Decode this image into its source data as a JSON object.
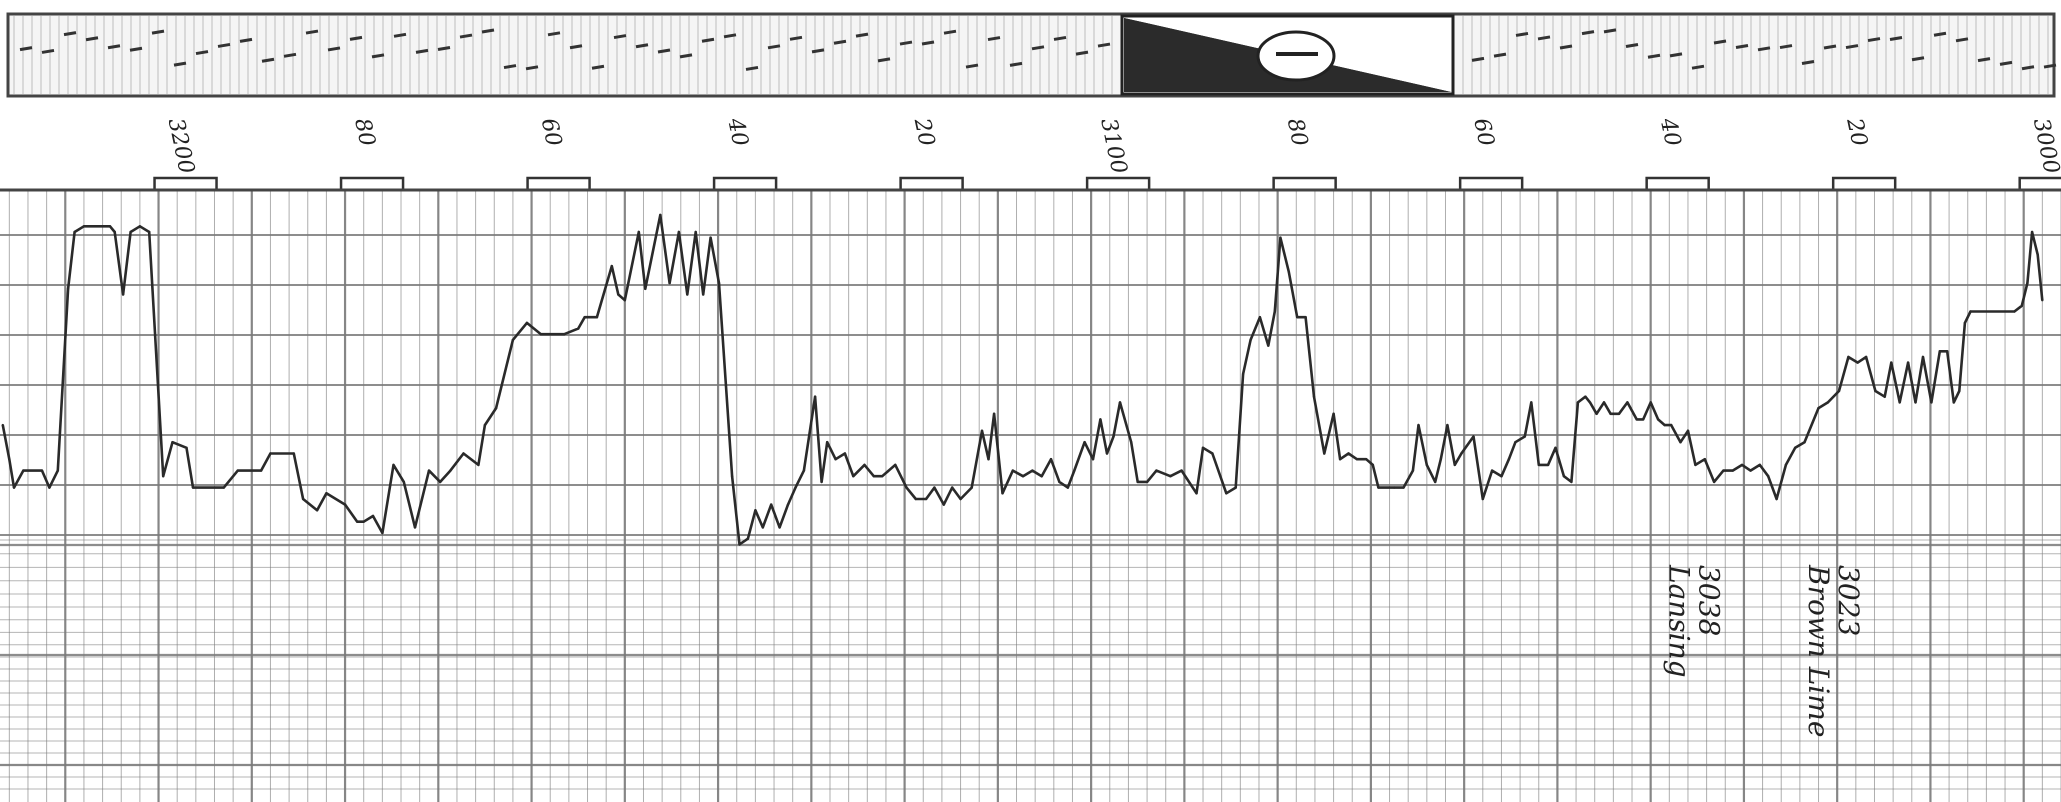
{
  "chart_data": {
    "type": "line",
    "title": "",
    "xlabel": "",
    "ylabel": "",
    "x_axis_direction": "decreasing",
    "xlim": [
      3217,
      2996
    ],
    "depth_ticks": [
      "3200",
      "80",
      "60",
      "40",
      "20",
      "3100",
      "80",
      "60",
      "40",
      "20",
      "3000"
    ],
    "depth_tick_values": [
      3200,
      3180,
      3160,
      3140,
      3120,
      3100,
      3080,
      3060,
      3040,
      3020,
      3000
    ],
    "ylim": [
      0,
      100
    ],
    "grid": true,
    "legend": "none",
    "colors": {
      "trace": "#2a2a2a",
      "grid": "#7a7a7a",
      "paper": "#ffffff"
    },
    "series": [
      {
        "values": [
          [
            3216.7,
            66
          ],
          [
            3216.0,
            60
          ],
          [
            3215.5,
            55
          ],
          [
            3214.5,
            58
          ],
          [
            3212.5,
            58
          ],
          [
            3211.7,
            55
          ],
          [
            3210.8,
            58
          ],
          [
            3209.7,
            90
          ],
          [
            3209.0,
            100
          ],
          [
            3208.0,
            101
          ],
          [
            3205.2,
            101
          ],
          [
            3204.7,
            100
          ],
          [
            3203.8,
            89
          ],
          [
            3203.0,
            100
          ],
          [
            3202.0,
            101
          ],
          [
            3201.0,
            100
          ],
          [
            3199.5,
            57
          ],
          [
            3198.5,
            63
          ],
          [
            3197.0,
            62
          ],
          [
            3196.3,
            55
          ],
          [
            3193.0,
            55
          ],
          [
            3191.5,
            58
          ],
          [
            3189.0,
            58
          ],
          [
            3188.0,
            61
          ],
          [
            3185.5,
            61
          ],
          [
            3184.5,
            53
          ],
          [
            3183.0,
            51
          ],
          [
            3182.0,
            54
          ],
          [
            3180.0,
            52
          ],
          [
            3178.7,
            49
          ],
          [
            3178.0,
            49
          ],
          [
            3177.0,
            50
          ],
          [
            3176.0,
            47
          ],
          [
            3174.8,
            59
          ],
          [
            3173.7,
            56
          ],
          [
            3172.5,
            48
          ],
          [
            3171.0,
            58
          ],
          [
            3169.8,
            56
          ],
          [
            3168.7,
            58
          ],
          [
            3167.3,
            61
          ],
          [
            3165.7,
            59
          ],
          [
            3165.0,
            66
          ],
          [
            3163.8,
            69
          ],
          [
            3162.0,
            81
          ],
          [
            3160.5,
            84
          ],
          [
            3159.0,
            82
          ],
          [
            3156.5,
            82
          ],
          [
            3155.0,
            83
          ],
          [
            3154.3,
            85
          ],
          [
            3153.0,
            85
          ],
          [
            3151.4,
            94
          ],
          [
            3150.7,
            89
          ],
          [
            3150.0,
            88
          ],
          [
            3148.5,
            100
          ],
          [
            3147.8,
            90
          ],
          [
            3146.2,
            103
          ],
          [
            3145.2,
            91
          ],
          [
            3144.2,
            100
          ],
          [
            3143.3,
            89
          ],
          [
            3142.4,
            100
          ],
          [
            3141.6,
            89
          ],
          [
            3140.8,
            99
          ],
          [
            3139.9,
            91
          ],
          [
            3138.5,
            57
          ],
          [
            3137.7,
            45
          ],
          [
            3136.8,
            46
          ],
          [
            3136.0,
            51
          ],
          [
            3135.2,
            48
          ],
          [
            3134.3,
            52
          ],
          [
            3133.4,
            48
          ],
          [
            3132.5,
            52
          ],
          [
            3131.7,
            55
          ],
          [
            3130.8,
            58
          ],
          [
            3129.6,
            71
          ],
          [
            3128.9,
            56
          ],
          [
            3128.3,
            63
          ],
          [
            3127.4,
            60
          ],
          [
            3126.4,
            61
          ],
          [
            3125.5,
            57
          ],
          [
            3124.3,
            59
          ],
          [
            3123.3,
            57
          ],
          [
            3122.4,
            57
          ],
          [
            3121.0,
            59
          ],
          [
            3119.8,
            55
          ],
          [
            3118.8,
            53
          ],
          [
            3117.7,
            53
          ],
          [
            3116.8,
            55
          ],
          [
            3115.8,
            52
          ],
          [
            3114.9,
            55
          ],
          [
            3114.0,
            53
          ],
          [
            3112.8,
            55
          ],
          [
            3111.7,
            65
          ],
          [
            3111.0,
            60
          ],
          [
            3110.4,
            68
          ],
          [
            3109.5,
            54
          ],
          [
            3108.4,
            58
          ],
          [
            3107.3,
            57
          ],
          [
            3106.3,
            58
          ],
          [
            3105.3,
            57
          ],
          [
            3104.3,
            60
          ],
          [
            3103.4,
            56
          ],
          [
            3102.5,
            55
          ],
          [
            3101.8,
            58
          ],
          [
            3100.7,
            63
          ],
          [
            3099.8,
            60
          ],
          [
            3099.0,
            67
          ],
          [
            3098.3,
            61
          ],
          [
            3097.6,
            64
          ],
          [
            3096.9,
            70
          ],
          [
            3095.7,
            63
          ],
          [
            3095.0,
            56
          ],
          [
            3094.0,
            56
          ],
          [
            3093.0,
            58
          ],
          [
            3091.5,
            57
          ],
          [
            3090.3,
            58
          ],
          [
            3088.7,
            54
          ],
          [
            3088.0,
            62
          ],
          [
            3087.0,
            61
          ],
          [
            3085.5,
            54
          ],
          [
            3084.5,
            55
          ],
          [
            3083.7,
            75
          ],
          [
            3082.9,
            81
          ],
          [
            3081.9,
            85
          ],
          [
            3081.0,
            80
          ],
          [
            3080.3,
            86
          ],
          [
            3079.7,
            99
          ],
          [
            3078.8,
            93
          ],
          [
            3077.9,
            85
          ],
          [
            3077.0,
            85
          ],
          [
            3076.1,
            71
          ],
          [
            3075.0,
            61
          ],
          [
            3074.0,
            68
          ],
          [
            3073.3,
            60
          ],
          [
            3072.4,
            61
          ],
          [
            3071.5,
            60
          ],
          [
            3070.5,
            60
          ],
          [
            3069.8,
            59
          ],
          [
            3069.2,
            55
          ],
          [
            3067.5,
            55
          ],
          [
            3066.5,
            55
          ],
          [
            3065.5,
            58
          ],
          [
            3064.9,
            66
          ],
          [
            3064.0,
            59
          ],
          [
            3063.1,
            56
          ],
          [
            3062.5,
            60
          ],
          [
            3061.8,
            66
          ],
          [
            3061.0,
            59
          ],
          [
            3060.3,
            61
          ],
          [
            3059.0,
            64
          ],
          [
            3058.0,
            53
          ],
          [
            3057.0,
            58
          ],
          [
            3056.0,
            57
          ],
          [
            3055.2,
            60
          ],
          [
            3054.5,
            63
          ],
          [
            3053.5,
            64
          ],
          [
            3052.8,
            70
          ],
          [
            3052.0,
            59
          ],
          [
            3051.0,
            59
          ],
          [
            3050.2,
            62
          ],
          [
            3049.3,
            57
          ],
          [
            3048.5,
            56
          ],
          [
            3047.8,
            70
          ],
          [
            3047.0,
            71
          ],
          [
            3046.5,
            70
          ],
          [
            3045.8,
            68
          ],
          [
            3045.0,
            70
          ],
          [
            3044.3,
            68
          ],
          [
            3043.4,
            68
          ],
          [
            3042.5,
            70
          ],
          [
            3041.5,
            67
          ],
          [
            3040.8,
            67
          ],
          [
            3040.0,
            70
          ],
          [
            3039.2,
            67
          ],
          [
            3038.5,
            66
          ],
          [
            3037.8,
            66
          ],
          [
            3036.8,
            63
          ],
          [
            3036.0,
            65
          ],
          [
            3035.2,
            59
          ],
          [
            3034.2,
            60
          ],
          [
            3033.2,
            56
          ],
          [
            3032.2,
            58
          ],
          [
            3031.2,
            58
          ],
          [
            3030.2,
            59
          ],
          [
            3029.3,
            58
          ],
          [
            3028.3,
            59
          ],
          [
            3027.4,
            57
          ],
          [
            3026.5,
            53
          ],
          [
            3025.5,
            59
          ],
          [
            3024.5,
            62
          ],
          [
            3023.5,
            63
          ],
          [
            3022.0,
            69
          ],
          [
            3021.0,
            70
          ],
          [
            3019.8,
            72
          ],
          [
            3018.8,
            78
          ],
          [
            3017.8,
            77
          ],
          [
            3016.9,
            78
          ],
          [
            3015.9,
            72
          ],
          [
            3014.9,
            71
          ],
          [
            3014.2,
            77
          ],
          [
            3013.3,
            70
          ],
          [
            3012.4,
            77
          ],
          [
            3011.6,
            70
          ],
          [
            3010.8,
            78
          ],
          [
            3009.9,
            70
          ],
          [
            3009.0,
            79
          ],
          [
            3008.2,
            79
          ],
          [
            3007.5,
            70
          ],
          [
            3006.9,
            72
          ],
          [
            3006.3,
            84
          ],
          [
            3005.7,
            86
          ],
          [
            3001.0,
            86
          ],
          [
            3000.2,
            87
          ],
          [
            2999.6,
            91
          ],
          [
            2999.1,
            100
          ],
          [
            2998.5,
            96
          ],
          [
            2998.0,
            88
          ]
        ]
      }
    ],
    "annotations": [
      {
        "lines": [
          "Lansing",
          "3038"
        ],
        "depth": 3038
      },
      {
        "lines": [
          "Brown Lime",
          "3023"
        ],
        "depth": 3023
      }
    ]
  }
}
